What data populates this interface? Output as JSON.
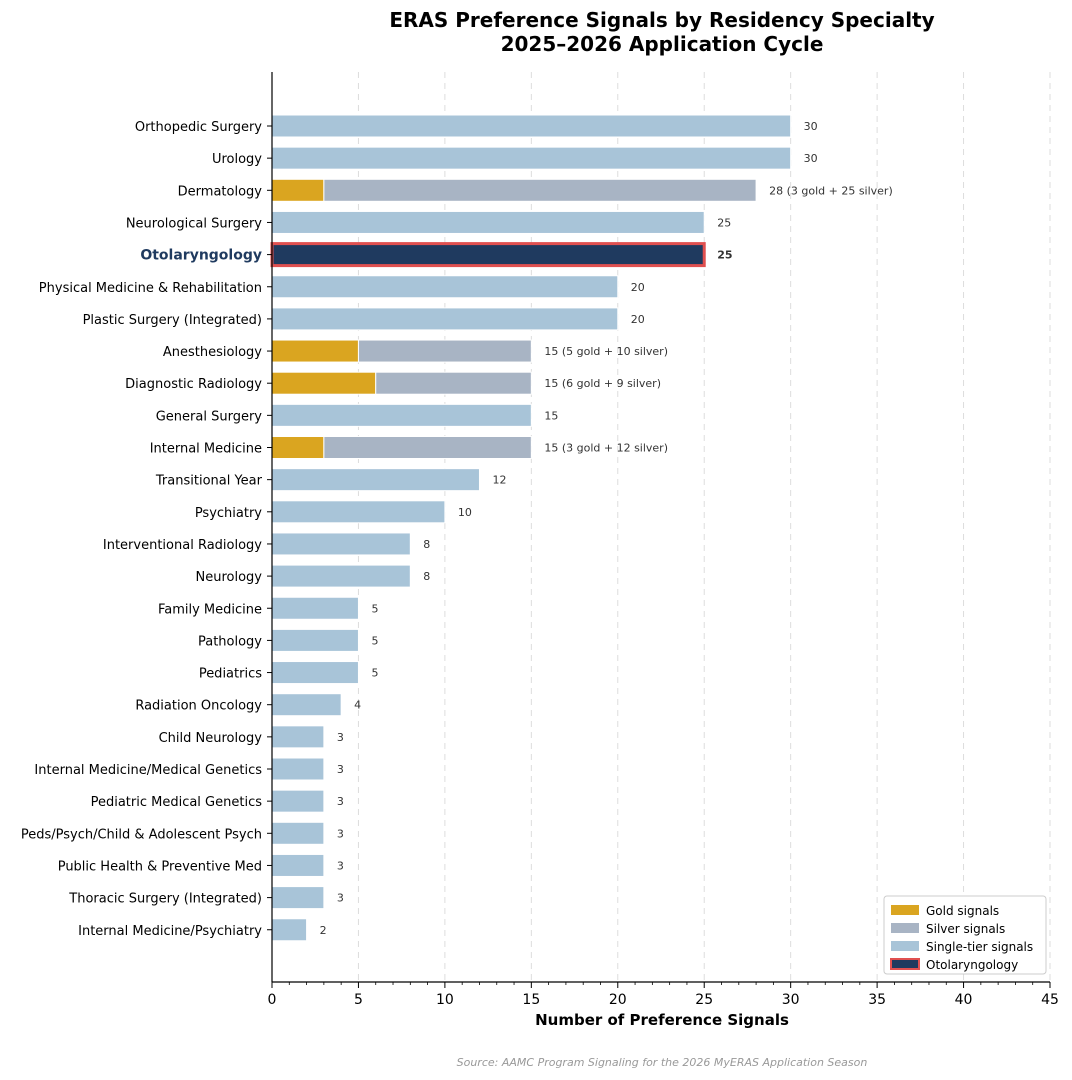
{
  "chart_data": {
    "type": "bar",
    "orientation": "horizontal",
    "stacked": true,
    "title": "ERAS Preference Signals by Residency Specialty",
    "subtitle": "2025–2026 Application Cycle",
    "xlabel": "Number of Preference Signals",
    "ylabel": "",
    "xlim": [
      0,
      45
    ],
    "xticks": [
      "0",
      "5",
      "10",
      "15",
      "20",
      "25",
      "30",
      "35",
      "40",
      "45"
    ],
    "grid": "x-dashed",
    "legend_position": "bottom-right",
    "highlight": "Otolaryngology",
    "categories": [
      "Orthopedic Surgery",
      "Urology",
      "Dermatology",
      "Neurological Surgery",
      "Otolaryngology",
      "Physical Medicine & Rehabilitation",
      "Plastic Surgery (Integrated)",
      "Anesthesiology",
      "Diagnostic Radiology",
      "General Surgery",
      "Internal Medicine",
      "Transitional Year",
      "Psychiatry",
      "Interventional Radiology",
      "Neurology",
      "Family Medicine",
      "Pathology",
      "Pediatrics",
      "Radiation Oncology",
      "Child Neurology",
      "Internal Medicine/Medical Genetics",
      "Pediatric Medical Genetics",
      "Peds/Psych/Child & Adolescent Psych",
      "Public Health & Preventive Med",
      "Thoracic Surgery (Integrated)",
      "Internal Medicine/Psychiatry"
    ],
    "series": [
      {
        "name": "Gold signals",
        "color": "#DAA520",
        "values": [
          0,
          0,
          3,
          0,
          0,
          0,
          0,
          5,
          6,
          0,
          3,
          0,
          0,
          0,
          0,
          0,
          0,
          0,
          0,
          0,
          0,
          0,
          0,
          0,
          0,
          0
        ]
      },
      {
        "name": "Silver signals",
        "color": "#A8B4C4",
        "values": [
          0,
          0,
          25,
          0,
          0,
          0,
          0,
          10,
          9,
          0,
          12,
          0,
          0,
          0,
          0,
          0,
          0,
          0,
          0,
          0,
          0,
          0,
          0,
          0,
          0,
          0
        ]
      },
      {
        "name": "Single-tier signals",
        "color": "#A8C4D8",
        "values": [
          30,
          30,
          0,
          25,
          0,
          20,
          20,
          0,
          0,
          15,
          0,
          12,
          10,
          8,
          8,
          5,
          5,
          5,
          4,
          3,
          3,
          3,
          3,
          3,
          3,
          2
        ]
      },
      {
        "name": "Otolaryngology",
        "color": "#1F3A5F",
        "edge_color": "#E05050",
        "values": [
          0,
          0,
          0,
          0,
          25,
          0,
          0,
          0,
          0,
          0,
          0,
          0,
          0,
          0,
          0,
          0,
          0,
          0,
          0,
          0,
          0,
          0,
          0,
          0,
          0,
          0
        ]
      }
    ],
    "data_labels": [
      "30",
      "30",
      "28  (3 gold + 25 silver)",
      "25",
      "25",
      "20",
      "20",
      "15  (5 gold + 10 silver)",
      "15  (6 gold + 9 silver)",
      "15",
      "15  (3 gold + 12 silver)",
      "12",
      "10",
      "8",
      "8",
      "5",
      "5",
      "5",
      "4",
      "3",
      "3",
      "3",
      "3",
      "3",
      "3",
      "2"
    ],
    "source": "Source: AAMC Program Signaling for the 2026 MyERAS Application Season"
  }
}
